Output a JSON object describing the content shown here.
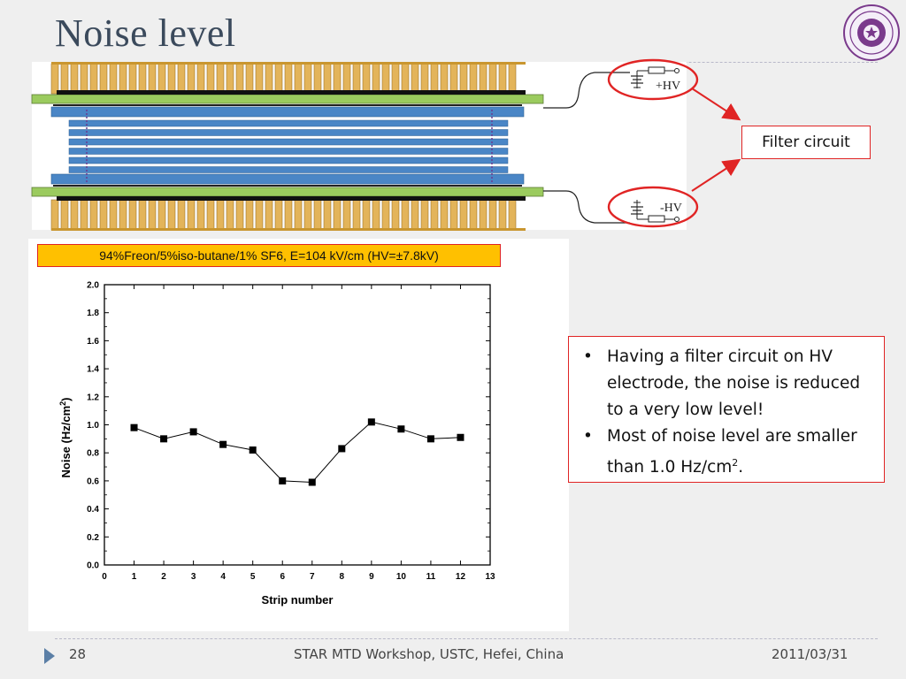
{
  "slide": {
    "title": "Noise level",
    "callout": "Filter circuit",
    "hv_plus": "+HV",
    "hv_minus": "-HV",
    "condition": "94%Freon/5%iso-butane/1% SF6, E=104 kV/cm (HV=±7.8kV)",
    "bullets": [
      {
        "text": "Having a filter circuit on HV electrode, the noise is reduced to a very low level!",
        "sup": ""
      },
      {
        "text": "Most of noise level are smaller than 1.0 Hz/cm",
        "sup": "2",
        "tail": "."
      }
    ],
    "bullet_glyph": "•"
  },
  "footer": {
    "page": "28",
    "event": "STAR MTD Workshop, USTC, Hefei, China",
    "date": "2011/03/31"
  },
  "colors": {
    "title": "#3b4a5c",
    "accent_red": "#e02424",
    "label_fill": "#ffc000",
    "strip_blue": "#4a86c6",
    "pcb_green": "#9bcb5e",
    "pickup_gold": "#e3b45a"
  },
  "chart_data": {
    "type": "line",
    "title": "",
    "xlabel": "Strip number",
    "ylabel": "Noise (Hz/cm",
    "ylabel_sup": "2",
    "ylabel_tail": ")",
    "xlim": [
      0,
      13
    ],
    "ylim": [
      0.0,
      2.0
    ],
    "xticks": [
      "0",
      "1",
      "2",
      "3",
      "4",
      "5",
      "6",
      "7",
      "8",
      "9",
      "10",
      "11",
      "12",
      "13"
    ],
    "yticks": [
      "0.0",
      "0.2",
      "0.4",
      "0.6",
      "0.8",
      "1.0",
      "1.2",
      "1.4",
      "1.6",
      "1.8",
      "2.0"
    ],
    "grid": false,
    "series": [
      {
        "x": [
          1,
          2,
          3,
          4,
          5,
          6,
          7,
          8,
          9,
          10,
          11,
          12
        ],
        "y": [
          0.98,
          0.9,
          0.95,
          0.86,
          0.82,
          0.6,
          0.59,
          0.83,
          1.02,
          0.97,
          0.9,
          0.91
        ]
      }
    ]
  }
}
